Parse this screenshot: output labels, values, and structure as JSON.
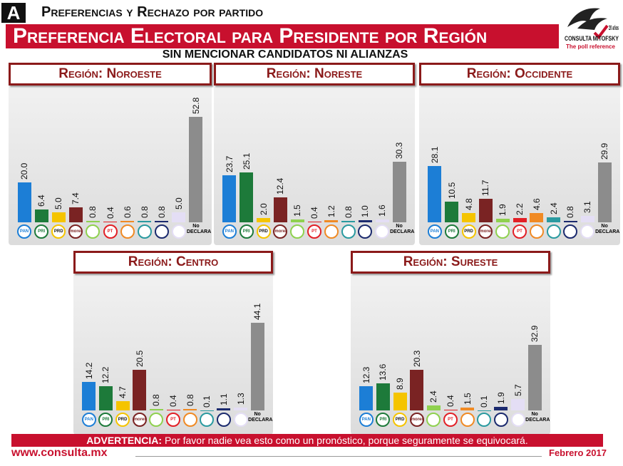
{
  "header": {
    "letter": "A",
    "section": "Preferencias y Rechazo por partido",
    "title": "Preferencia Electoral para Presidente por Región",
    "subtitle": "SIN MENCIONAR CANDIDATOS NI ALIANZAS",
    "brand": "CONSULTA MITOFSKY",
    "tagline": "The poll reference",
    "anniversary": "20 años"
  },
  "chart_data": [
    {
      "type": "bar",
      "title": "Región: Noroeste",
      "categories": [
        "PAN",
        "PRI",
        "PRD",
        "morena",
        null,
        "PT",
        null,
        null,
        null,
        null,
        "No DECLARA"
      ],
      "values": [
        20.0,
        6.4,
        5.0,
        7.4,
        0.8,
        0.4,
        0.6,
        0.8,
        0.8,
        5.0,
        52.8
      ],
      "value_labels": [
        "20.0",
        "6.4",
        "5.0",
        "7.4",
        "0.8",
        "0.4",
        "0.6",
        "0.8",
        "0.8",
        "5.0",
        "52.8"
      ],
      "colors": [
        "#1c7ed6",
        "#1d7a3a",
        "#f5c400",
        "#7a2323",
        "#8fd14f",
        "#e21f26",
        "#f08a24",
        "#2a9aa0",
        "#1b2a6e",
        "#e4def5",
        "#8c8c8c"
      ]
    },
    {
      "type": "bar",
      "title": "Región: Noreste",
      "categories": [
        "PAN",
        "PRI",
        "PRD",
        "morena",
        null,
        "PT",
        null,
        null,
        null,
        null,
        "No DECLARA"
      ],
      "values": [
        23.7,
        25.1,
        2.0,
        12.4,
        1.5,
        0.4,
        1.2,
        0.8,
        1.0,
        1.6,
        30.3
      ],
      "value_labels": [
        "23.7",
        "25.1",
        "2.0",
        "12.4",
        "1.5",
        "0.4",
        "1.2",
        "0.8",
        "1.0",
        "1.6",
        "30.3"
      ],
      "colors": [
        "#1c7ed6",
        "#1d7a3a",
        "#f5c400",
        "#7a2323",
        "#8fd14f",
        "#e21f26",
        "#f08a24",
        "#2a9aa0",
        "#1b2a6e",
        "#e4def5",
        "#8c8c8c"
      ]
    },
    {
      "type": "bar",
      "title": "Región: Occidente",
      "categories": [
        "PAN",
        "PRI",
        "PRD",
        "morena",
        null,
        "PT",
        null,
        null,
        null,
        null,
        "No DECLARA"
      ],
      "values": [
        28.1,
        10.5,
        4.8,
        11.7,
        1.9,
        2.2,
        4.6,
        2.4,
        0.8,
        3.1,
        29.9
      ],
      "value_labels": [
        "28.1",
        "10.5",
        "4.8",
        "11.7",
        "1.9",
        "2.2",
        "4.6",
        "2.4",
        "0.8",
        "3.1",
        "29.9"
      ],
      "colors": [
        "#1c7ed6",
        "#1d7a3a",
        "#f5c400",
        "#7a2323",
        "#8fd14f",
        "#e21f26",
        "#f08a24",
        "#2a9aa0",
        "#1b2a6e",
        "#e4def5",
        "#8c8c8c"
      ]
    },
    {
      "type": "bar",
      "title": "Región: Centro",
      "categories": [
        "PAN",
        "PRI",
        "PRD",
        "morena",
        null,
        "PT",
        null,
        null,
        null,
        null,
        "No DECLARA"
      ],
      "values": [
        14.2,
        12.2,
        4.7,
        20.5,
        0.8,
        0.4,
        0.8,
        0.1,
        1.1,
        1.3,
        44.1
      ],
      "value_labels": [
        "14.2",
        "12.2",
        "4.7",
        "20.5",
        "0.8",
        "0.4",
        "0.8",
        "0.1",
        "1.1",
        "1.3",
        "44.1"
      ],
      "colors": [
        "#1c7ed6",
        "#1d7a3a",
        "#f5c400",
        "#7a2323",
        "#8fd14f",
        "#e21f26",
        "#f08a24",
        "#2a9aa0",
        "#1b2a6e",
        "#e4def5",
        "#8c8c8c"
      ]
    },
    {
      "type": "bar",
      "title": "Región: Sureste",
      "categories": [
        "PAN",
        "PRI",
        "PRD",
        "morena",
        null,
        "PT",
        null,
        null,
        null,
        null,
        "No DECLARA"
      ],
      "values": [
        12.3,
        13.6,
        8.9,
        20.3,
        2.4,
        0.4,
        1.5,
        0.1,
        1.9,
        5.7,
        32.9
      ],
      "value_labels": [
        "12.3",
        "13.6",
        "8.9",
        "20.3",
        "2.4",
        "0.4",
        "1.5",
        "0.1",
        "1.9",
        "5.7",
        "32.9"
      ],
      "colors": [
        "#1c7ed6",
        "#1d7a3a",
        "#f5c400",
        "#7a2323",
        "#8fd14f",
        "#e21f26",
        "#f08a24",
        "#2a9aa0",
        "#1b2a6e",
        "#e4def5",
        "#8c8c8c"
      ]
    }
  ],
  "footer": {
    "warning_label": "ADVERTENCIA:",
    "warning": "Por favor nadie vea esto como un pronóstico, porque seguramente se equivocará.",
    "website": "www.consulta.mx",
    "date": "Febrero 2017"
  }
}
